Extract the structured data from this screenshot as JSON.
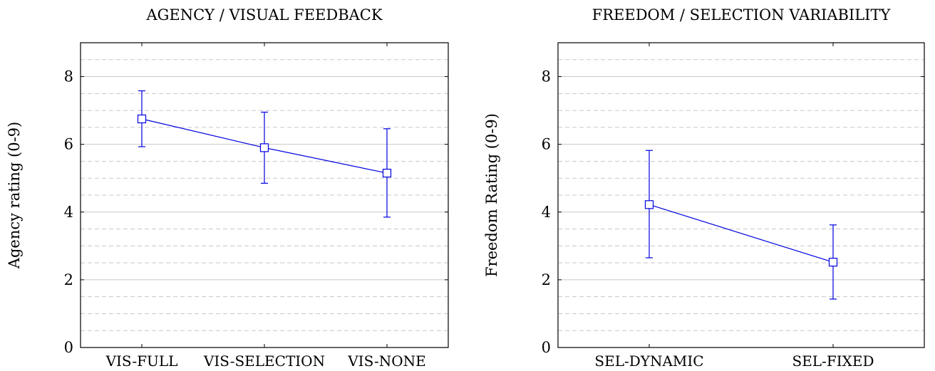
{
  "chart_data": [
    {
      "type": "line",
      "title": "AGENCY / VISUAL FEEDBACK",
      "xlabel": "",
      "ylabel": "Agency rating (0-9)",
      "categories": [
        "VIS-FULL",
        "VIS-SELECTION",
        "VIS-NONE"
      ],
      "series": [
        {
          "values": [
            6.75,
            5.9,
            5.15
          ],
          "error_low": [
            5.93,
            4.85,
            3.85
          ],
          "error_high": [
            7.58,
            6.95,
            6.46
          ]
        }
      ],
      "ylim": [
        0,
        9
      ],
      "yticks": [
        0,
        2,
        4,
        6,
        8
      ],
      "grid": "major solid at ticks, minor dashed every 0.5",
      "color": "#0000e0",
      "marker": "open-square"
    },
    {
      "type": "line",
      "title": "FREEDOM / SELECTION VARIABILITY",
      "xlabel": "",
      "ylabel": "Freedom Rating (0-9)",
      "categories": [
        "SEL-DYNAMIC",
        "SEL-FIXED"
      ],
      "series": [
        {
          "values": [
            4.22,
            2.52
          ],
          "error_low": [
            2.65,
            1.43
          ],
          "error_high": [
            5.82,
            3.62
          ]
        }
      ],
      "ylim": [
        0,
        9
      ],
      "yticks": [
        0,
        2,
        4,
        6,
        8
      ],
      "grid": "major solid at ticks, minor dashed every 0.5",
      "color": "#0000e0",
      "marker": "open-square"
    }
  ]
}
